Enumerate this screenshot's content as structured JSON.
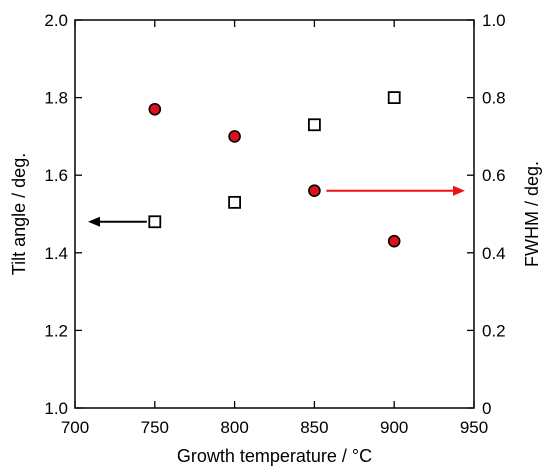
{
  "chart_data": {
    "type": "scatter",
    "xlabel": "Growth temperature / °C",
    "ylabel_left": "Tilt angle / deg.",
    "ylabel_right": "FWHM / deg.",
    "xlim": [
      700,
      950
    ],
    "ylim_left": [
      1.0,
      2.0
    ],
    "ylim_right": [
      0,
      1.0
    ],
    "x_ticks": [
      "700",
      "750",
      "800",
      "850",
      "900",
      "950"
    ],
    "y_left_ticks": [
      "1.0",
      "1.2",
      "1.4",
      "1.6",
      "1.8",
      "2.0"
    ],
    "y_right_ticks": [
      "0",
      "0.2",
      "0.4",
      "0.6",
      "0.8",
      "1.0"
    ],
    "grid": false,
    "series": [
      {
        "axis": "left",
        "marker": "open-square",
        "color": "#000000",
        "x": [
          750,
          800,
          850,
          900
        ],
        "y": [
          1.48,
          1.53,
          1.73,
          1.8
        ]
      },
      {
        "axis": "right",
        "marker": "filled-circle",
        "color": "#e0101a",
        "x": [
          750,
          800,
          850,
          900
        ],
        "y": [
          0.77,
          0.7,
          0.56,
          0.43
        ]
      }
    ],
    "annotations": [
      {
        "type": "arrow",
        "direction": "left",
        "color": "#000000",
        "target_axis": "left"
      },
      {
        "type": "arrow",
        "direction": "right",
        "color": "#ee1111",
        "target_axis": "right"
      }
    ]
  }
}
